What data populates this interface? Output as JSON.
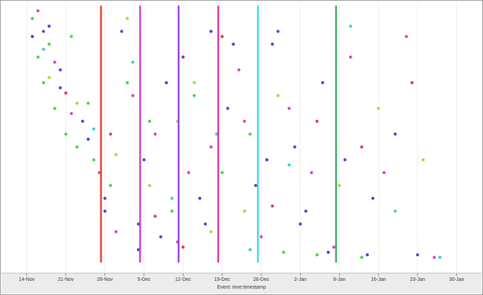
{
  "chart_data": {
    "type": "scatter",
    "x_label": "Event: time:timestamp",
    "xlim": [
      -1,
      79.7
    ],
    "ylim": [
      0,
      100
    ],
    "grid": true,
    "xticks": [
      {
        "value": 0,
        "label": "14-Nov"
      },
      {
        "value": 7,
        "label": "21-Nov"
      },
      {
        "value": 14,
        "label": "28-Nov"
      },
      {
        "value": 21,
        "label": "5-Dec"
      },
      {
        "value": 28,
        "label": "12-Dec"
      },
      {
        "value": 35,
        "label": "19-Dec"
      },
      {
        "value": 42,
        "label": "26-Dec"
      },
      {
        "value": 49,
        "label": "2-Jan"
      },
      {
        "value": 56,
        "label": "9-Jan"
      },
      {
        "value": 63,
        "label": "16-Jan"
      },
      {
        "value": 70,
        "label": "23-Jan"
      },
      {
        "value": 77,
        "label": "30-Jan"
      }
    ],
    "vlines": [
      {
        "x": 13.3,
        "color": "#e0402a"
      },
      {
        "x": 20.3,
        "color": "#d838d8"
      },
      {
        "x": 27.2,
        "color": "#9a3ce0"
      },
      {
        "x": 34.3,
        "color": "#e0309a"
      },
      {
        "x": 41.4,
        "color": "#30e0e8"
      },
      {
        "x": 55.4,
        "color": "#3aa860"
      }
    ],
    "series": [
      {
        "color": "#3fd84a",
        "x": [
          1,
          2,
          3,
          5,
          4,
          7,
          9,
          12,
          15,
          18,
          22,
          26,
          30,
          35,
          40,
          46,
          52,
          60,
          8,
          11
        ],
        "values": [
          95,
          80,
          70,
          60,
          85,
          50,
          45,
          40,
          30,
          70,
          55,
          20,
          65,
          35,
          50,
          4,
          3,
          2,
          88,
          62
        ]
      },
      {
        "color": "#7b30d8",
        "x": [
          3,
          6,
          10,
          14,
          17,
          21,
          24,
          28,
          32,
          36,
          41,
          44,
          48,
          50,
          53,
          57,
          62,
          66,
          70,
          45
        ],
        "values": [
          90,
          75,
          55,
          25,
          90,
          40,
          10,
          80,
          15,
          60,
          30,
          85,
          45,
          20,
          70,
          40,
          25,
          50,
          3,
          90
        ]
      },
      {
        "color": "#e03fbf",
        "x": [
          2,
          5,
          8,
          13,
          16,
          19,
          23,
          27,
          29,
          33,
          38,
          42,
          47,
          51,
          55,
          58,
          64,
          68,
          73,
          39
        ],
        "values": [
          98,
          78,
          58,
          35,
          12,
          65,
          50,
          8,
          35,
          45,
          75,
          10,
          60,
          35,
          6,
          80,
          35,
          88,
          2,
          55
        ]
      },
      {
        "color": "#3a46d6",
        "x": [
          1,
          4,
          6,
          11,
          14,
          20,
          25,
          31,
          37,
          43,
          49,
          54,
          61,
          20,
          33
        ],
        "values": [
          88,
          92,
          68,
          48,
          20,
          15,
          70,
          25,
          85,
          40,
          15,
          4,
          3,
          5,
          90
        ]
      },
      {
        "color": "#a9d83a",
        "x": [
          4,
          9,
          16,
          22,
          27,
          33,
          39,
          45,
          56,
          63,
          71,
          18,
          30
        ],
        "values": [
          72,
          62,
          42,
          30,
          55,
          12,
          20,
          65,
          30,
          60,
          40,
          95,
          70
        ]
      },
      {
        "color": "#35cfd2",
        "x": [
          3,
          12,
          19,
          26,
          34,
          40,
          47,
          58,
          66,
          74
        ],
        "values": [
          83,
          52,
          78,
          25,
          50,
          5,
          38,
          92,
          20,
          2
        ]
      },
      {
        "color": "#e23a55",
        "x": [
          7,
          15,
          23,
          28,
          35,
          44,
          52,
          60,
          69
        ],
        "values": [
          66,
          50,
          18,
          6,
          88,
          22,
          55,
          45,
          70
        ]
      }
    ]
  }
}
